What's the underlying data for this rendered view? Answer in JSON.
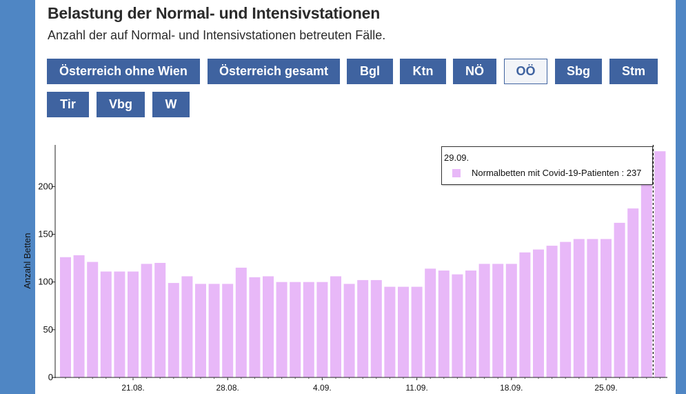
{
  "header": {
    "title": "Belastung der Normal- und Intensivstationen",
    "subtitle": "Anzahl der auf Normal- und Intensivstationen betreuten Fälle."
  },
  "region_buttons": [
    {
      "label": "Österreich ohne Wien",
      "active": false
    },
    {
      "label": "Österreich gesamt",
      "active": false
    },
    {
      "label": "Bgl",
      "active": false
    },
    {
      "label": "Ktn",
      "active": false
    },
    {
      "label": "NÖ",
      "active": false
    },
    {
      "label": "OÖ",
      "active": true
    },
    {
      "label": "Sbg",
      "active": false
    },
    {
      "label": "Stm",
      "active": false
    },
    {
      "label": "Tir",
      "active": false
    },
    {
      "label": "Vbg",
      "active": false
    },
    {
      "label": "W",
      "active": false
    }
  ],
  "tooltip": {
    "date": "29.09.",
    "text": "Normalbetten mit Covid-19-Patienten : 237"
  },
  "colors": {
    "bar": "#e8b8f8",
    "button_bg": "#3f63a0",
    "page_frame": "#4f86c4"
  },
  "chart_data": {
    "type": "bar",
    "ylabel": "Anzahl Betten",
    "ylim": [
      0,
      240
    ],
    "yticks": [
      0,
      50,
      100,
      150,
      200
    ],
    "xtick_labels": [
      "21.08.",
      "28.08.",
      "4.09.",
      "11.09.",
      "18.09.",
      "25.09."
    ],
    "xtick_indices": [
      5,
      12,
      19,
      26,
      33,
      40
    ],
    "categories": [
      "16.08.",
      "17.08.",
      "18.08.",
      "19.08.",
      "20.08.",
      "21.08.",
      "22.08.",
      "23.08.",
      "24.08.",
      "25.08.",
      "26.08.",
      "27.08.",
      "28.08.",
      "29.08.",
      "30.08.",
      "31.08.",
      "1.09.",
      "2.09.",
      "3.09.",
      "4.09.",
      "5.09.",
      "6.09.",
      "7.09.",
      "8.09.",
      "9.09.",
      "10.09.",
      "11.09.",
      "12.09.",
      "13.09.",
      "14.09.",
      "15.09.",
      "16.09.",
      "17.09.",
      "18.09.",
      "19.09.",
      "20.09.",
      "21.09.",
      "22.09.",
      "23.09.",
      "24.09.",
      "25.09.",
      "26.09.",
      "27.09.",
      "28.09.",
      "29.09."
    ],
    "series": [
      {
        "name": "Normalbetten mit Covid-19-Patienten",
        "values": [
          126,
          128,
          121,
          111,
          111,
          111,
          119,
          120,
          99,
          106,
          98,
          98,
          98,
          115,
          105,
          106,
          100,
          100,
          100,
          100,
          106,
          98,
          102,
          102,
          95,
          95,
          95,
          114,
          112,
          108,
          112,
          119,
          119,
          119,
          131,
          134,
          138,
          142,
          145,
          145,
          145,
          162,
          177,
          213,
          237
        ]
      }
    ],
    "highlighted_category": "29.09."
  }
}
